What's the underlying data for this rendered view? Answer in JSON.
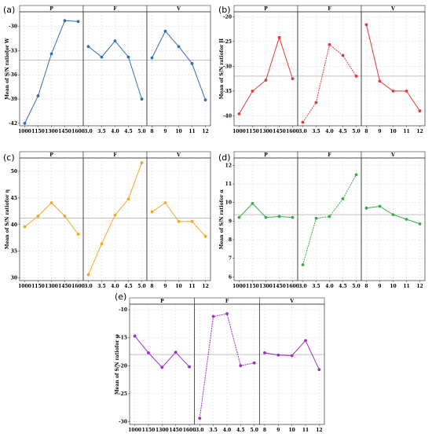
{
  "chart_data": [
    {
      "type": "line",
      "panel_label": "(a)",
      "ylabel": "Mean of S/N ratiofor W",
      "color": "#2f6fb3",
      "ylim": [
        -42.3,
        -28.2
      ],
      "yticks": [
        "-42",
        "-39",
        "-36",
        "-33",
        "-30"
      ],
      "ytick_values": [
        -42,
        -39,
        -36,
        -33,
        -30
      ],
      "mean": -34.2,
      "facets": [
        {
          "name": "P",
          "categories": [
            "1000",
            "1150",
            "1300",
            "1450",
            "1600"
          ],
          "values": [
            -42.0,
            -38.6,
            -33.4,
            -29.3,
            -29.4
          ]
        },
        {
          "name": "F",
          "categories": [
            "3.0",
            "3.5",
            "4.0",
            "4.5",
            "5.0"
          ],
          "values": [
            -32.5,
            -33.8,
            -31.8,
            -33.8,
            -39.0
          ]
        },
        {
          "name": "V",
          "categories": [
            "8",
            "9",
            "10",
            "11",
            "12"
          ],
          "values": [
            -33.9,
            -30.6,
            -32.5,
            -34.6,
            -39.1
          ]
        }
      ]
    },
    {
      "type": "line",
      "panel_label": "(b)",
      "ylabel": "Mean of S/N ratiofor H",
      "color": "#e03a3a",
      "ylim": [
        -42.0,
        -19.0
      ],
      "yticks": [
        "-40",
        "-35",
        "-30",
        "-25",
        "-20"
      ],
      "ytick_values": [
        -40,
        -35,
        -30,
        -25,
        -20
      ],
      "mean": -32.0,
      "facets": [
        {
          "name": "P",
          "categories": [
            "1000",
            "1150",
            "1300",
            "1450",
            "1600"
          ],
          "values": [
            -39.6,
            -35.0,
            -32.8,
            -24.2,
            -32.5
          ]
        },
        {
          "name": "F",
          "categories": [
            "3.0",
            "3.5",
            "4.0",
            "4.5",
            "5.0"
          ],
          "values": [
            -41.3,
            -37.3,
            -25.6,
            -27.8,
            -32.0
          ]
        },
        {
          "name": "V",
          "categories": [
            "8",
            "9",
            "10",
            "11",
            "12"
          ],
          "values": [
            -21.6,
            -33.0,
            -35.0,
            -35.0,
            -39.0
          ]
        }
      ]
    },
    {
      "type": "line",
      "panel_label": "(c)",
      "ylabel": "Mean of S/N ratiofor η",
      "color": "#f5a623",
      "ylim": [
        29.5,
        52.5
      ],
      "yticks": [
        "30",
        "35",
        "40",
        "45",
        "50"
      ],
      "ytick_values": [
        30,
        35,
        40,
        45,
        50
      ],
      "mean": 41.2,
      "facets": [
        {
          "name": "P",
          "categories": [
            "1000",
            "1150",
            "1300",
            "1450",
            "1600"
          ],
          "values": [
            39.6,
            41.6,
            44.1,
            41.6,
            38.2
          ]
        },
        {
          "name": "F",
          "categories": [
            "3.0",
            "3.5",
            "4.0",
            "4.5",
            "5.0"
          ],
          "values": [
            30.6,
            36.4,
            41.8,
            44.8,
            51.6
          ]
        },
        {
          "name": "V",
          "categories": [
            "8",
            "9",
            "10",
            "11",
            "12"
          ],
          "values": [
            42.4,
            44.1,
            40.6,
            40.6,
            37.8
          ]
        }
      ]
    },
    {
      "type": "line",
      "panel_label": "(d)",
      "ylabel": "Mean of S/N ratiofor α",
      "color": "#3aad4b",
      "ylim": [
        5.8,
        12.4
      ],
      "yticks": [
        "6",
        "7",
        "8",
        "9",
        "10",
        "11",
        "12"
      ],
      "ytick_values": [
        6,
        7,
        8,
        9,
        10,
        11,
        12
      ],
      "mean": 9.35,
      "facets": [
        {
          "name": "P",
          "categories": [
            "1000",
            "1150",
            "1300",
            "1450",
            "1600"
          ],
          "values": [
            9.2,
            9.95,
            9.2,
            9.25,
            9.2
          ]
        },
        {
          "name": "F",
          "categories": [
            "3.0",
            "3.5",
            "4.0",
            "4.5",
            "5.0"
          ],
          "values": [
            6.65,
            9.15,
            9.25,
            10.2,
            11.5
          ]
        },
        {
          "name": "V",
          "categories": [
            "8",
            "9",
            "10",
            "11",
            "12"
          ],
          "values": [
            9.7,
            9.8,
            9.35,
            9.1,
            8.85
          ]
        }
      ]
    },
    {
      "type": "line",
      "panel_label": "(e)",
      "ylabel": "Mean of S/N ratiofor φ",
      "color": "#9b30c8",
      "ylim": [
        -30.5,
        -9.0
      ],
      "yticks": [
        "-30",
        "-25",
        "-20",
        "-15",
        "-10"
      ],
      "ytick_values": [
        -30,
        -25,
        -20,
        -15,
        -10
      ],
      "mean": -18.0,
      "facets": [
        {
          "name": "P",
          "categories": [
            "1000",
            "1150",
            "1300",
            "1450",
            "1600"
          ],
          "values": [
            -14.7,
            -17.7,
            -20.3,
            -17.6,
            -20.2
          ]
        },
        {
          "name": "F",
          "categories": [
            "3.0",
            "3.5",
            "4.0",
            "4.5",
            "5.0"
          ],
          "values": [
            -29.4,
            -11.2,
            -10.7,
            -20.0,
            -19.5
          ]
        },
        {
          "name": "V",
          "categories": [
            "8",
            "9",
            "10",
            "11",
            "12"
          ],
          "values": [
            -17.7,
            -18.1,
            -18.2,
            -15.5,
            -20.7
          ]
        }
      ]
    }
  ]
}
